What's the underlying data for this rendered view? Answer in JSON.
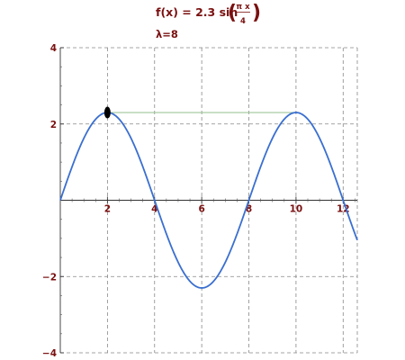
{
  "formula": {
    "lhs": "f(x) = 2.3 sin",
    "numerator": "π x",
    "denominator": "4"
  },
  "wavelength_label": "λ=8",
  "chart_data": {
    "type": "line",
    "title": "f(x) = 2.3 sin(π x / 4)",
    "subtitle": "λ=8",
    "xlim": [
      0,
      12.6
    ],
    "ylim": [
      -4,
      4
    ],
    "x_ticks": [
      2,
      4,
      6,
      8,
      10,
      12
    ],
    "y_ticks": [
      -4,
      -2,
      2,
      4
    ],
    "x_tick_labels": [
      "2",
      "4",
      "6",
      "8",
      "10",
      "12"
    ],
    "y_tick_labels": [
      "−4",
      "−2",
      "2",
      "4"
    ],
    "grid": true,
    "series": [
      {
        "amplitude": 2.3,
        "wavenumber": 0.7854,
        "x_start": 0,
        "x_end": 12.6,
        "color": "#3a6fd0"
      }
    ],
    "wavelength_marker": {
      "x1": 2,
      "x2": 10,
      "y": 2.3,
      "color": "#9fc59a"
    },
    "point": {
      "x": 2,
      "y": 2.3,
      "color": "#000000"
    }
  }
}
